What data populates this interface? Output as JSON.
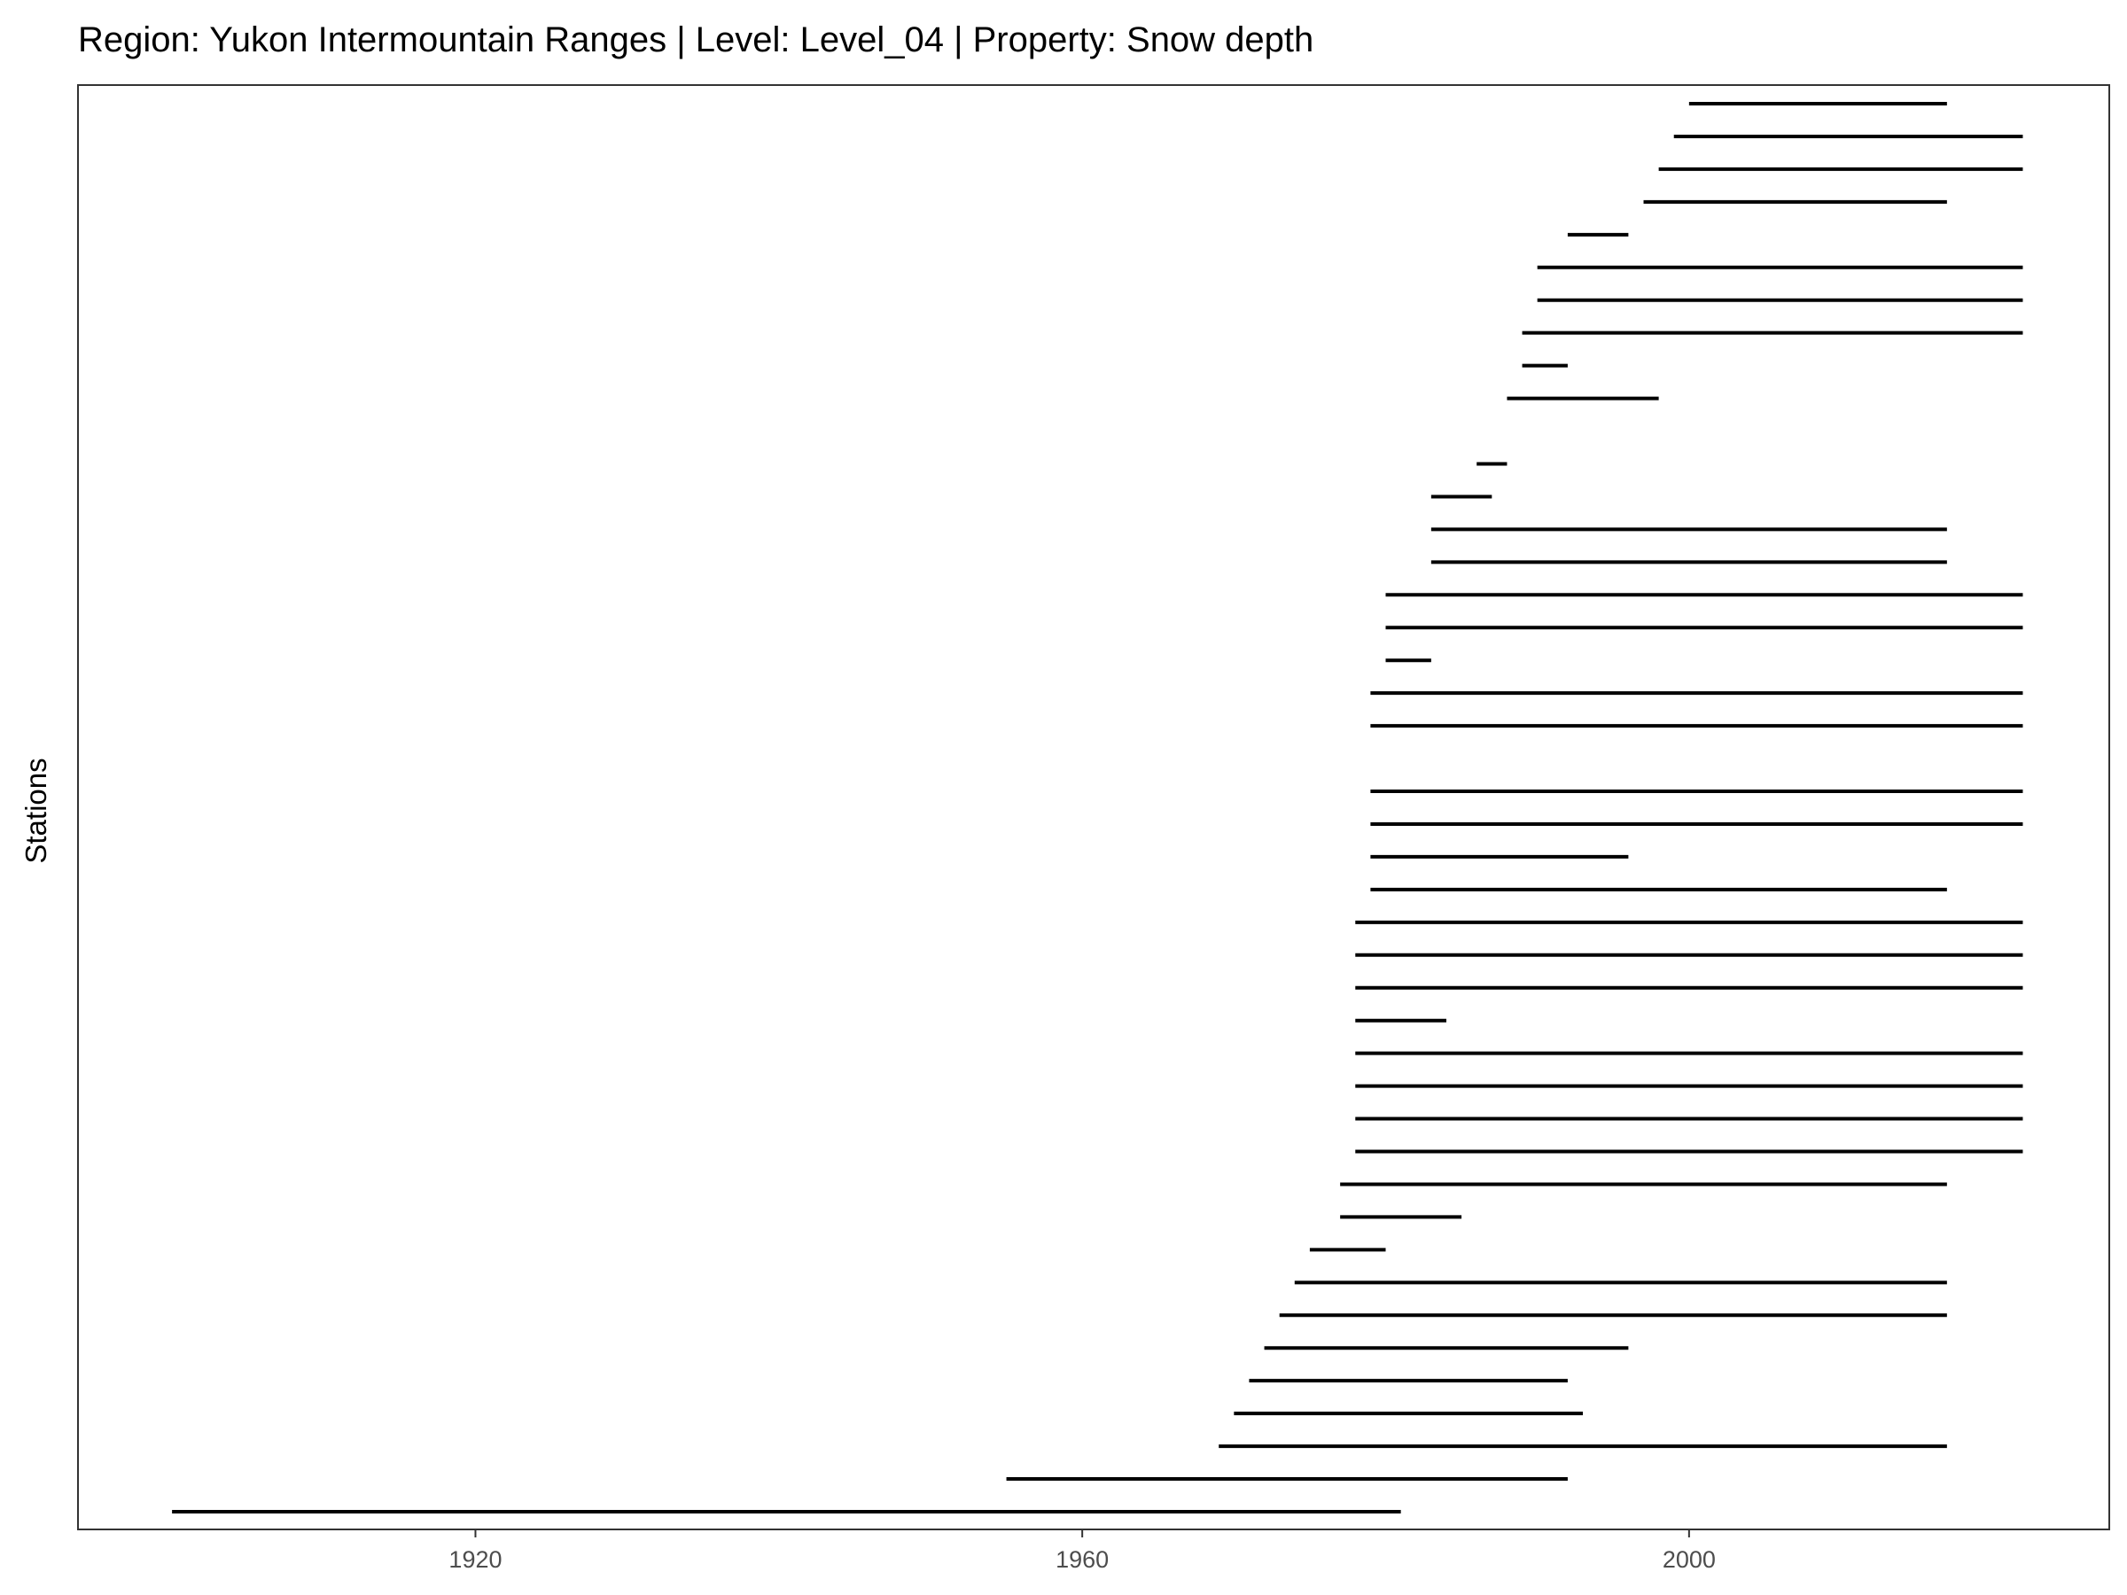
{
  "chart_data": {
    "type": "timeline",
    "title": "Region: Yukon Intermountain Ranges | Level: Level_04 | Property: Snow depth",
    "xlabel": "",
    "ylabel": "Stations",
    "xlim": [
      1893.8,
      2027.7
    ],
    "x_ticks": [
      1920,
      1960,
      2000
    ],
    "grid": false,
    "legend": "none",
    "line_color": "#000000",
    "segments": [
      {
        "start": 1900,
        "end": 1981
      },
      {
        "start": 1955,
        "end": 1992
      },
      {
        "start": 1969,
        "end": 2017
      },
      {
        "start": 1970,
        "end": 1993
      },
      {
        "start": 1971,
        "end": 1992
      },
      {
        "start": 1972,
        "end": 1996
      },
      {
        "start": 1973,
        "end": 2017
      },
      {
        "start": 1974,
        "end": 2017
      },
      {
        "start": 1975,
        "end": 1980
      },
      {
        "start": 1977,
        "end": 1985
      },
      {
        "start": 1977,
        "end": 2017
      },
      {
        "start": 1978,
        "end": 2022
      },
      {
        "start": 1978,
        "end": 2022
      },
      {
        "start": 1978,
        "end": 2022
      },
      {
        "start": 1978,
        "end": 2022
      },
      {
        "start": 1978,
        "end": 1984
      },
      {
        "start": 1978,
        "end": 2022
      },
      {
        "start": 1978,
        "end": 2022
      },
      {
        "start": 1978,
        "end": 2022
      },
      {
        "start": 1979,
        "end": 2017
      },
      {
        "start": 1979,
        "end": 1996
      },
      {
        "start": 1979,
        "end": 2022
      },
      {
        "start": 1979,
        "end": 2022
      },
      {
        "start": null,
        "end": null
      },
      {
        "start": 1979,
        "end": 2022
      },
      {
        "start": 1979,
        "end": 2022
      },
      {
        "start": 1980,
        "end": 1983
      },
      {
        "start": 1980,
        "end": 2022
      },
      {
        "start": 1980,
        "end": 2022
      },
      {
        "start": 1983,
        "end": 2017
      },
      {
        "start": 1983,
        "end": 2017
      },
      {
        "start": 1983,
        "end": 1987
      },
      {
        "start": 1986,
        "end": 1988
      },
      {
        "start": null,
        "end": null
      },
      {
        "start": 1988,
        "end": 1998
      },
      {
        "start": 1989,
        "end": 1992
      },
      {
        "start": 1989,
        "end": 2022
      },
      {
        "start": 1990,
        "end": 2022
      },
      {
        "start": 1990,
        "end": 2022
      },
      {
        "start": 1992,
        "end": 1996
      },
      {
        "start": 1997,
        "end": 2017
      },
      {
        "start": 1998,
        "end": 2022
      },
      {
        "start": 1999,
        "end": 2022
      },
      {
        "start": 2000,
        "end": 2017
      }
    ]
  }
}
